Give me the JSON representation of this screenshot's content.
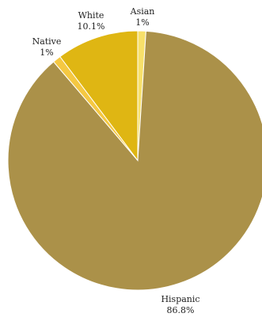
{
  "chart_data": {
    "type": "pie",
    "categories": [
      "Asian",
      "Hispanic",
      "Native",
      "White"
    ],
    "values": [
      1,
      86.8,
      1,
      10.1
    ],
    "labels": [
      {
        "name": "Asian",
        "value_label": "1%"
      },
      {
        "name": "Hispanic",
        "value_label": "86.8%"
      },
      {
        "name": "Native",
        "value_label": "1%"
      },
      {
        "name": "White",
        "value_label": "10.1%"
      }
    ],
    "colors": [
      "#f7e06a",
      "#ab9149",
      "#f5c842",
      "#dfb613"
    ],
    "start": "top",
    "direction": "clockwise",
    "title": "",
    "legend": "none"
  }
}
